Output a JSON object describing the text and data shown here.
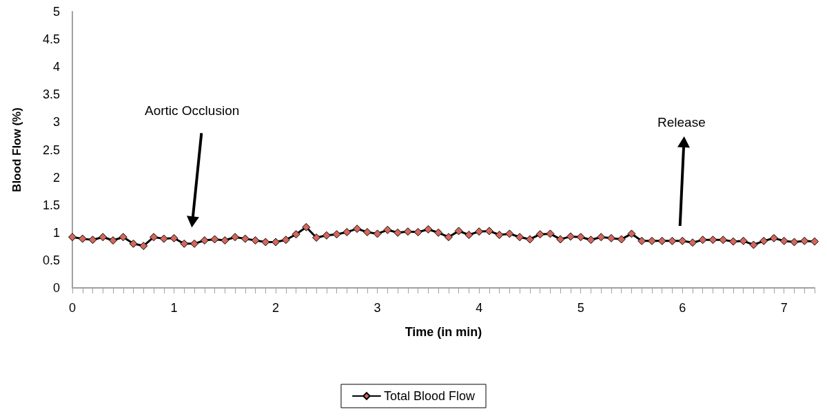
{
  "chart_data": {
    "type": "line",
    "xlabel": "Time (in min)",
    "ylabel": "Blood Flow (%)",
    "categories": [
      "0",
      null,
      null,
      null,
      null,
      null,
      null,
      null,
      null,
      null,
      "1",
      null,
      null,
      null,
      null,
      null,
      null,
      null,
      null,
      null,
      "2",
      null,
      null,
      null,
      null,
      null,
      null,
      null,
      null,
      null,
      "3",
      null,
      null,
      null,
      null,
      null,
      null,
      null,
      null,
      null,
      "4",
      null,
      null,
      null,
      null,
      null,
      null,
      null,
      null,
      null,
      "5",
      null,
      null,
      null,
      null,
      null,
      null,
      null,
      null,
      null,
      "6",
      null,
      null,
      null,
      null,
      null,
      null,
      null,
      null,
      null,
      "7",
      null,
      null,
      null
    ],
    "series": [
      {
        "name": "Total Blood Flow",
        "color": "#d4675c",
        "values": [
          0.92,
          0.89,
          0.87,
          0.92,
          0.86,
          0.92,
          0.8,
          0.76,
          0.92,
          0.89,
          0.9,
          0.8,
          0.8,
          0.86,
          0.88,
          0.86,
          0.92,
          0.89,
          0.86,
          0.83,
          0.83,
          0.87,
          0.97,
          1.1,
          0.91,
          0.95,
          0.97,
          1.01,
          1.07,
          1.01,
          0.98,
          1.05,
          1.0,
          1.02,
          1.01,
          1.06,
          1.0,
          0.92,
          1.03,
          0.96,
          1.02,
          1.03,
          0.96,
          0.98,
          0.92,
          0.88,
          0.97,
          0.98,
          0.88,
          0.93,
          0.92,
          0.87,
          0.92,
          0.9,
          0.88,
          0.98,
          0.85,
          0.85,
          0.85,
          0.85,
          0.85,
          0.82,
          0.87,
          0.87,
          0.87,
          0.84,
          0.85,
          0.78,
          0.85,
          0.9,
          0.85,
          0.83,
          0.85,
          0.84
        ]
      }
    ],
    "ylim": [
      0,
      5
    ],
    "yticks": [
      0,
      0.5,
      1,
      1.5,
      2,
      2.5,
      3,
      3.5,
      4,
      4.5,
      5
    ],
    "annotations": [
      "Aortic Occlusion",
      "Release"
    ],
    "grid": false,
    "legend": "bottom",
    "marker": "diamond",
    "line_style": "solid"
  }
}
